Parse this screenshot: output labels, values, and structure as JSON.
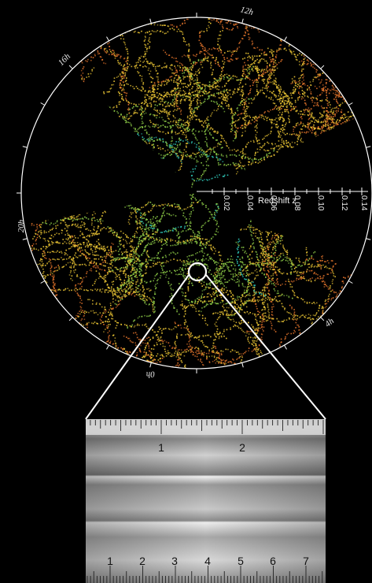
{
  "hours": [
    "12h",
    "16h",
    "20h",
    "0h",
    "4h"
  ],
  "redshift_axis": {
    "title": "Redshift z",
    "ticks": [
      "0.02",
      "0.04",
      "0.06",
      "0.08",
      "0.10",
      "0.12",
      "0.14"
    ]
  },
  "ruler": {
    "inch_labels": [
      "1",
      "2"
    ],
    "cm_labels": [
      "1",
      "2",
      "3",
      "4",
      "5",
      "6",
      "7"
    ]
  },
  "colors": {
    "background": "#000000",
    "filament_hot": "#e0722a",
    "filament_warm": "#e7c233",
    "filament_mid": "#8fce48",
    "filament_cool": "#2fc7b8",
    "ring": "#ffffff",
    "ruler_metal": "#b7b7b7"
  }
}
